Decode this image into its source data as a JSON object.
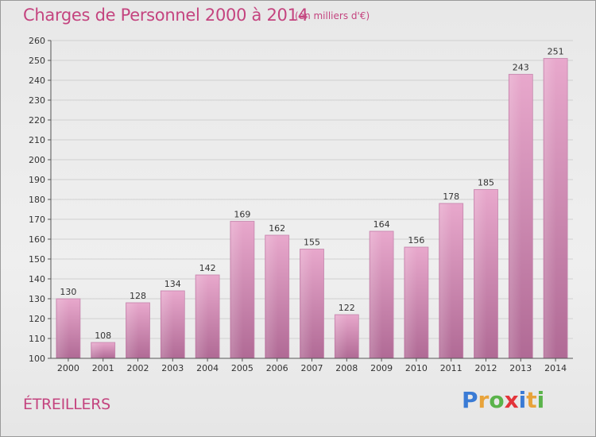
{
  "header": {
    "title": "Charges de Personnel 2000 à 2014",
    "subtitle": "(en milliers d'€)"
  },
  "footer": {
    "commune": "ÉTREILLERS",
    "logo_text": "Proxiti"
  },
  "colors": {
    "accent": "#c4447f",
    "bar_top": "#e8a8cc",
    "bar_bottom": "#b06a95",
    "grid": "#d0d0d0"
  },
  "chart_data": {
    "type": "bar",
    "categories": [
      "2000",
      "2001",
      "2002",
      "2003",
      "2004",
      "2005",
      "2006",
      "2007",
      "2008",
      "2009",
      "2010",
      "2011",
      "2012",
      "2013",
      "2014"
    ],
    "values": [
      130,
      108,
      128,
      134,
      142,
      169,
      162,
      155,
      122,
      164,
      156,
      178,
      185,
      243,
      251
    ],
    "title": "Charges de Personnel 2000 à 2014",
    "subtitle": "(en milliers d'€)",
    "xlabel": "",
    "ylabel": "",
    "ylim": [
      100,
      260
    ],
    "yticks": [
      100,
      110,
      120,
      130,
      140,
      150,
      160,
      170,
      180,
      190,
      200,
      210,
      220,
      230,
      240,
      250,
      260
    ],
    "grid": true,
    "data_labels": true
  }
}
